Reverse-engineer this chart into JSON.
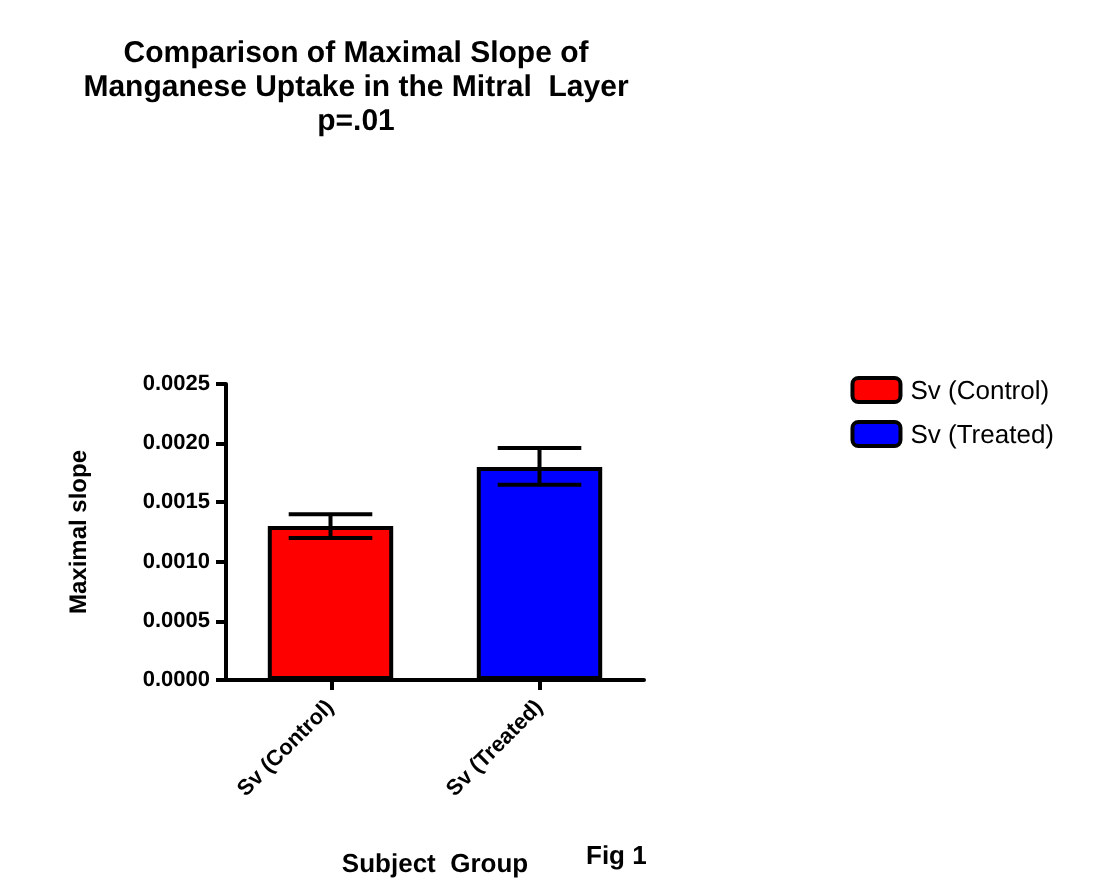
{
  "chart_data": {
    "type": "bar",
    "title": "Comparison of Maximal Slope of\nManganese Uptake in the Mitral  Layer\np=.01",
    "xlabel": "Subject  Group",
    "ylabel": "Maximal slope",
    "annotations": [
      "Fig 1"
    ],
    "categories": [
      "Sv (Control)",
      "Sv (Treated)"
    ],
    "series": [
      {
        "name": "Sv (Control)",
        "color": "#ff0000",
        "values": [
          0.0013,
          null
        ],
        "errors": [
          [
            0.0012,
            0.0014
          ],
          null
        ]
      },
      {
        "name": "Sv (Treated)",
        "color": "#0000ff",
        "values": [
          null,
          0.0018
        ],
        "errors": [
          null,
          [
            0.00165,
            0.00196
          ]
        ]
      }
    ],
    "ylim": [
      0,
      0.0025
    ],
    "yticks": [
      {
        "value": 0,
        "label": "0.0000"
      },
      {
        "value": 0.0005,
        "label": "0.0005"
      },
      {
        "value": 0.001,
        "label": "0.0010"
      },
      {
        "value": 0.0015,
        "label": "0.0015"
      },
      {
        "value": 0.002,
        "label": "0.0020"
      },
      {
        "value": 0.0025,
        "label": "0.0025"
      }
    ],
    "grid": false,
    "legend": "top right"
  }
}
